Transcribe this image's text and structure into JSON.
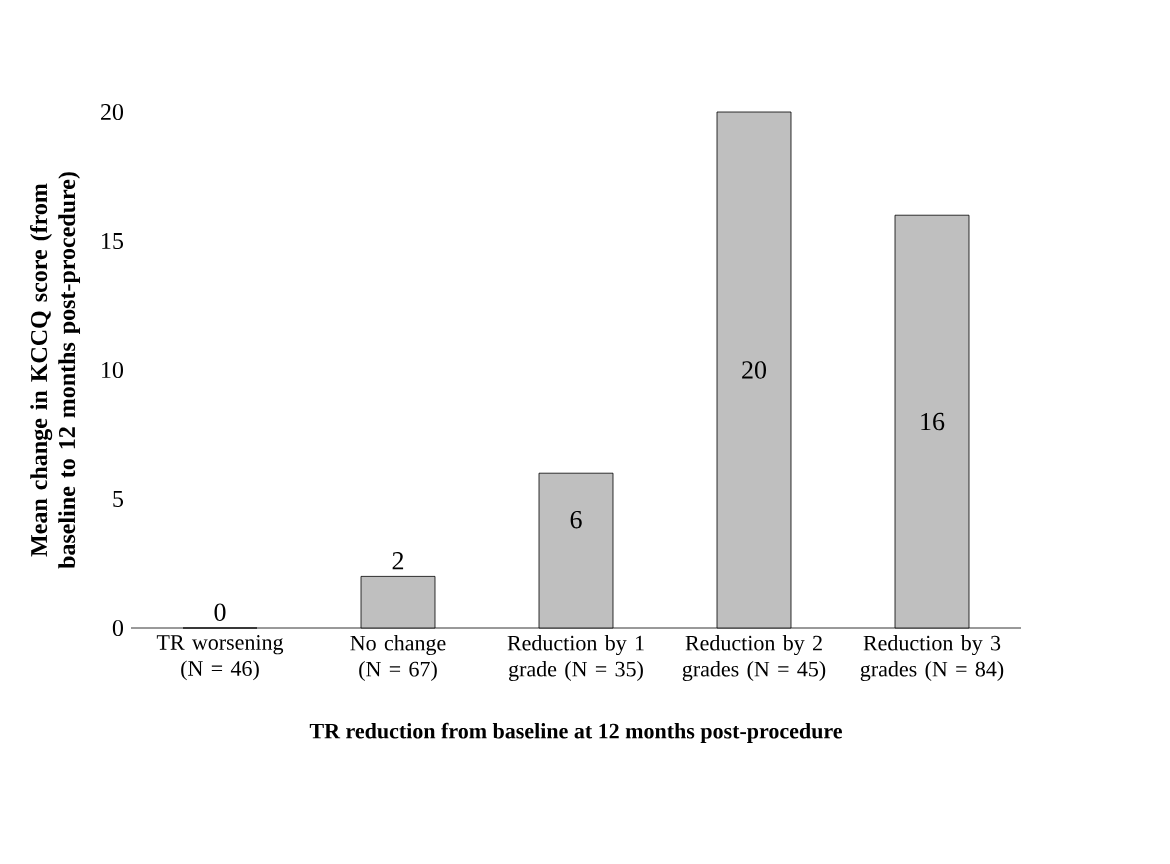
{
  "chart_data": {
    "type": "bar",
    "categories": [
      "TR worsening (N = 46)",
      "No change (N = 67)",
      "Reduction by 1 grade (N = 35)",
      "Reduction by 2 grades (N = 45)",
      "Reduction by 3 grades (N = 84)"
    ],
    "values": [
      0,
      2,
      6,
      20,
      16
    ],
    "color": "#bfbfbf",
    "ylim": [
      0,
      20
    ],
    "yticks": [
      0,
      5,
      10,
      15,
      20
    ],
    "data_labels": true,
    "xlabel": "TR reduction from baseline at 12 months post-procedure",
    "ylabel": "Mean change in KCCQ score (from baseline to 12 months post-procedure)"
  }
}
